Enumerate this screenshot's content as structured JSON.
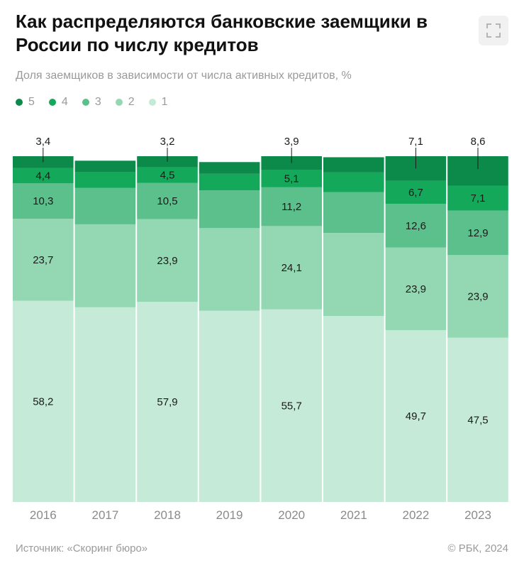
{
  "header": {
    "title": "Как распределяются банковские заемщики в России по числу кредитов",
    "subtitle": "Доля заемщиков в зависимости от числа активных кредитов, %",
    "expand_icon": "expand-icon"
  },
  "legend": [
    {
      "label": "5",
      "color": "#0b8a49"
    },
    {
      "label": "4",
      "color": "#14a85a"
    },
    {
      "label": "3",
      "color": "#5cc08c"
    },
    {
      "label": "2",
      "color": "#94d7b3"
    },
    {
      "label": "1",
      "color": "#c5ead7"
    }
  ],
  "chart_data": {
    "type": "bar",
    "stacked": true,
    "categories": [
      "2016",
      "2017",
      "2018",
      "2019",
      "2020",
      "2021",
      "2022",
      "2023"
    ],
    "title": "Как распределяются банковские заемщики в России по числу кредитов",
    "subtitle": "Доля заемщиков в зависимости от числа активных кредитов, %",
    "ylim": [
      0,
      100
    ],
    "series": [
      {
        "name": "1",
        "color": "#c5ead7",
        "values": [
          58.2,
          56.3,
          57.9,
          55.3,
          55.7,
          53.8,
          49.7,
          47.5
        ],
        "labels": [
          "58,2",
          "",
          "57,9",
          "",
          "55,7",
          "",
          "49,7",
          "47,5"
        ]
      },
      {
        "name": "2",
        "color": "#94d7b3",
        "values": [
          23.7,
          24.0,
          23.9,
          23.9,
          24.1,
          24.0,
          23.9,
          23.9
        ],
        "labels": [
          "23,7",
          "",
          "23,9",
          "",
          "24,1",
          "",
          "23,9",
          "23,9"
        ]
      },
      {
        "name": "3",
        "color": "#5cc08c",
        "values": [
          10.3,
          10.5,
          10.5,
          10.9,
          11.2,
          11.8,
          12.6,
          12.9
        ],
        "labels": [
          "10,3",
          "",
          "10,5",
          "",
          "11,2",
          "",
          "12,6",
          "12,9"
        ]
      },
      {
        "name": "4",
        "color": "#14a85a",
        "values": [
          4.4,
          4.6,
          4.5,
          4.8,
          5.1,
          5.7,
          6.7,
          7.1
        ],
        "labels": [
          "4,4",
          "",
          "4,5",
          "",
          "5,1",
          "",
          "6,7",
          "7,1"
        ]
      },
      {
        "name": "5",
        "color": "#0b8a49",
        "values": [
          3.4,
          3.3,
          3.2,
          3.4,
          3.9,
          4.4,
          7.1,
          8.6
        ],
        "labels": [
          "3,4",
          "",
          "3,2",
          "",
          "3,9",
          "",
          "7,1",
          "8,6"
        ]
      }
    ]
  },
  "footer": {
    "source": "Источник: «Скоринг бюро»",
    "copyright": "© РБК, 2024"
  }
}
